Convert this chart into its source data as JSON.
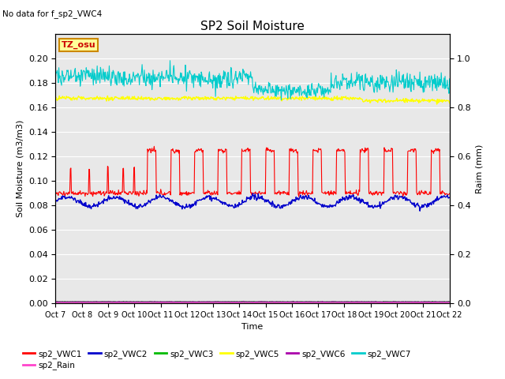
{
  "title": "SP2 Soil Moisture",
  "no_data_text": "No data for f_sp2_VWC4",
  "tz_label": "TZ_osu",
  "xlabel": "Time",
  "ylabel_left": "Soil Moisture (m3/m3)",
  "ylabel_right": "Raim (mm)",
  "ylim_left": [
    0.0,
    0.22
  ],
  "ylim_right": [
    0.0,
    1.1
  ],
  "yticks_left": [
    0.0,
    0.02,
    0.04,
    0.06,
    0.08,
    0.1,
    0.12,
    0.14,
    0.16,
    0.18,
    0.2
  ],
  "yticks_right": [
    0.0,
    0.2,
    0.4,
    0.6,
    0.8,
    1.0
  ],
  "xtick_labels": [
    "Oct 7",
    "Oct 8",
    "Oct 9",
    "Oct 10",
    "Oct 11",
    "Oct 12",
    "Oct 13",
    "Oct 14",
    "Oct 15",
    "Oct 16",
    "Oct 17",
    "Oct 18",
    "Oct 19",
    "Oct 20",
    "Oct 21",
    "Oct 22"
  ],
  "background_color": "#e8e8e8",
  "grid_color": "#ffffff",
  "legend_entries": [
    {
      "label": "sp2_VWC1",
      "color": "#ff0000"
    },
    {
      "label": "sp2_VWC2",
      "color": "#0000cc"
    },
    {
      "label": "sp2_VWC3",
      "color": "#00bb00"
    },
    {
      "label": "sp2_VWC5",
      "color": "#ffff00"
    },
    {
      "label": "sp2_VWC6",
      "color": "#aa00aa"
    },
    {
      "label": "sp2_VWC7",
      "color": "#00cccc"
    },
    {
      "label": "sp2_Rain",
      "color": "#ff44cc"
    }
  ],
  "vwc1_base": 0.09,
  "vwc1_spike_early": 0.11,
  "vwc1_spike_late": 0.125,
  "vwc2_base": 0.083,
  "vwc5_base": 0.1675,
  "vwc7_base": 0.186,
  "rain_base": 0.001
}
